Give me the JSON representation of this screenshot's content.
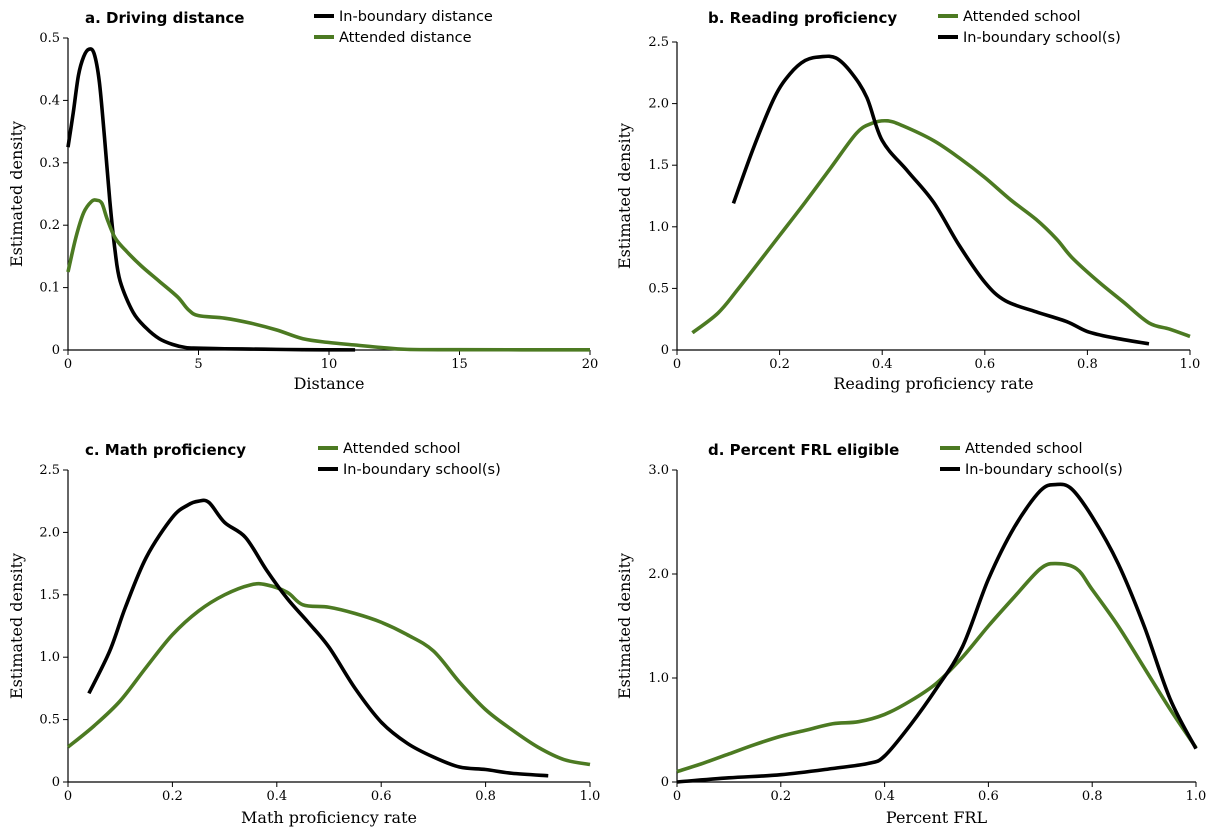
{
  "colors": {
    "green": "#4c7a22",
    "black": "#000000"
  },
  "chart_data": [
    {
      "type": "line",
      "title": "a. Driving distance",
      "xlabel": "Distance",
      "ylabel": "Estimated density",
      "xlim": [
        0,
        20
      ],
      "ylim": [
        0,
        0.5
      ],
      "xticks": [
        "0",
        "5",
        "10",
        "15",
        "20"
      ],
      "xtick_values": [
        0,
        5,
        10,
        15,
        20
      ],
      "yticks": [
        "0",
        "0.1",
        "0.2",
        "0.3",
        "0.4",
        "0.5"
      ],
      "ytick_values": [
        0,
        0.1,
        0.2,
        0.3,
        0.4,
        0.5
      ],
      "legend_position": "top-center",
      "series": [
        {
          "name": "In-boundary distance",
          "color": "#000000",
          "points": [
            [
              0,
              0.325
            ],
            [
              0.2,
              0.38
            ],
            [
              0.4,
              0.44
            ],
            [
              0.6,
              0.47
            ],
            [
              0.8,
              0.482
            ],
            [
              1.0,
              0.475
            ],
            [
              1.2,
              0.43
            ],
            [
              1.4,
              0.34
            ],
            [
              1.6,
              0.24
            ],
            [
              1.8,
              0.16
            ],
            [
              2.0,
              0.11
            ],
            [
              2.5,
              0.06
            ],
            [
              3.0,
              0.035
            ],
            [
              3.5,
              0.018
            ],
            [
              4.0,
              0.009
            ],
            [
              4.5,
              0.004
            ],
            [
              5,
              0.003
            ],
            [
              6,
              0.002
            ],
            [
              7,
              0.0015
            ],
            [
              8,
              0.001
            ],
            [
              9,
              0.0005
            ],
            [
              10,
              0.0003
            ],
            [
              11,
              0.0002
            ]
          ]
        },
        {
          "name": "Attended distance",
          "color": "#4c7a22",
          "points": [
            [
              0,
              0.125
            ],
            [
              0.3,
              0.18
            ],
            [
              0.6,
              0.22
            ],
            [
              0.9,
              0.238
            ],
            [
              1.1,
              0.24
            ],
            [
              1.3,
              0.235
            ],
            [
              1.5,
              0.21
            ],
            [
              1.8,
              0.18
            ],
            [
              2.2,
              0.16
            ],
            [
              2.8,
              0.135
            ],
            [
              3.5,
              0.11
            ],
            [
              4.2,
              0.085
            ],
            [
              4.6,
              0.065
            ],
            [
              5,
              0.055
            ],
            [
              6,
              0.051
            ],
            [
              7,
              0.043
            ],
            [
              8,
              0.032
            ],
            [
              9,
              0.018
            ],
            [
              10,
              0.012
            ],
            [
              11,
              0.008
            ],
            [
              12,
              0.004
            ],
            [
              13,
              0.001
            ],
            [
              15,
              0.0005
            ],
            [
              20,
              0.0003
            ]
          ]
        }
      ]
    },
    {
      "type": "line",
      "title": "b. Reading proficiency",
      "xlabel": "Reading proficiency rate",
      "ylabel": "Estimated density",
      "xlim": [
        0,
        1.0
      ],
      "ylim": [
        0,
        2.5
      ],
      "xticks": [
        "0",
        "0.2",
        "0.4",
        "0.6",
        "0.8",
        "1.0"
      ],
      "xtick_values": [
        0,
        0.2,
        0.4,
        0.6,
        0.8,
        1.0
      ],
      "yticks": [
        "0",
        "0.5",
        "1.0",
        "1.5",
        "2.0",
        "2.5"
      ],
      "ytick_values": [
        0,
        0.5,
        1.0,
        1.5,
        2.0,
        2.5
      ],
      "legend_position": "top-center",
      "series": [
        {
          "name": "Attended school",
          "color": "#4c7a22",
          "points": [
            [
              0.03,
              0.14
            ],
            [
              0.08,
              0.3
            ],
            [
              0.12,
              0.5
            ],
            [
              0.2,
              0.93
            ],
            [
              0.25,
              1.2
            ],
            [
              0.3,
              1.48
            ],
            [
              0.35,
              1.76
            ],
            [
              0.38,
              1.84
            ],
            [
              0.41,
              1.86
            ],
            [
              0.44,
              1.82
            ],
            [
              0.5,
              1.7
            ],
            [
              0.55,
              1.56
            ],
            [
              0.6,
              1.4
            ],
            [
              0.65,
              1.22
            ],
            [
              0.7,
              1.06
            ],
            [
              0.74,
              0.9
            ],
            [
              0.77,
              0.75
            ],
            [
              0.82,
              0.56
            ],
            [
              0.87,
              0.39
            ],
            [
              0.92,
              0.22
            ],
            [
              0.96,
              0.17
            ],
            [
              1.0,
              0.11
            ]
          ]
        },
        {
          "name": "In-boundary school(s)",
          "color": "#000000",
          "points": [
            [
              0.11,
              1.19
            ],
            [
              0.15,
              1.65
            ],
            [
              0.19,
              2.05
            ],
            [
              0.22,
              2.24
            ],
            [
              0.25,
              2.35
            ],
            [
              0.28,
              2.38
            ],
            [
              0.31,
              2.37
            ],
            [
              0.34,
              2.25
            ],
            [
              0.37,
              2.05
            ],
            [
              0.4,
              1.7
            ],
            [
              0.45,
              1.45
            ],
            [
              0.5,
              1.2
            ],
            [
              0.55,
              0.85
            ],
            [
              0.6,
              0.55
            ],
            [
              0.64,
              0.4
            ],
            [
              0.7,
              0.31
            ],
            [
              0.76,
              0.23
            ],
            [
              0.8,
              0.15
            ],
            [
              0.85,
              0.1
            ],
            [
              0.92,
              0.05
            ]
          ]
        }
      ]
    },
    {
      "type": "line",
      "title": "c. Math proficiency",
      "xlabel": "Math proficiency rate",
      "ylabel": "Estimated density",
      "xlim": [
        0,
        1.0
      ],
      "ylim": [
        0,
        2.5
      ],
      "xticks": [
        "0",
        "0.2",
        "0.4",
        "0.6",
        "0.8",
        "1.0"
      ],
      "xtick_values": [
        0,
        0.2,
        0.4,
        0.6,
        0.8,
        1.0
      ],
      "yticks": [
        "0",
        "0.5",
        "1.0",
        "1.5",
        "2.0",
        "2.5"
      ],
      "ytick_values": [
        0,
        0.5,
        1.0,
        1.5,
        2.0,
        2.5
      ],
      "legend_position": "top-center",
      "series": [
        {
          "name": "Attended school",
          "color": "#4c7a22",
          "points": [
            [
              0,
              0.28
            ],
            [
              0.05,
              0.45
            ],
            [
              0.1,
              0.65
            ],
            [
              0.15,
              0.92
            ],
            [
              0.2,
              1.18
            ],
            [
              0.25,
              1.37
            ],
            [
              0.3,
              1.5
            ],
            [
              0.35,
              1.58
            ],
            [
              0.38,
              1.58
            ],
            [
              0.42,
              1.52
            ],
            [
              0.45,
              1.42
            ],
            [
              0.5,
              1.4
            ],
            [
              0.55,
              1.35
            ],
            [
              0.6,
              1.28
            ],
            [
              0.65,
              1.18
            ],
            [
              0.7,
              1.05
            ],
            [
              0.75,
              0.8
            ],
            [
              0.8,
              0.58
            ],
            [
              0.85,
              0.42
            ],
            [
              0.9,
              0.28
            ],
            [
              0.95,
              0.18
            ],
            [
              1.0,
              0.14
            ]
          ]
        },
        {
          "name": "In-boundary school(s)",
          "color": "#000000",
          "points": [
            [
              0.04,
              0.71
            ],
            [
              0.08,
              1.05
            ],
            [
              0.11,
              1.4
            ],
            [
              0.15,
              1.8
            ],
            [
              0.2,
              2.12
            ],
            [
              0.23,
              2.22
            ],
            [
              0.25,
              2.25
            ],
            [
              0.27,
              2.24
            ],
            [
              0.3,
              2.08
            ],
            [
              0.34,
              1.96
            ],
            [
              0.38,
              1.7
            ],
            [
              0.42,
              1.47
            ],
            [
              0.46,
              1.28
            ],
            [
              0.5,
              1.08
            ],
            [
              0.55,
              0.75
            ],
            [
              0.6,
              0.48
            ],
            [
              0.65,
              0.31
            ],
            [
              0.7,
              0.2
            ],
            [
              0.75,
              0.12
            ],
            [
              0.8,
              0.1
            ],
            [
              0.85,
              0.07
            ],
            [
              0.92,
              0.05
            ]
          ]
        }
      ]
    },
    {
      "type": "line",
      "title": "d. Percent FRL eligible",
      "xlabel": "Percent FRL",
      "ylabel": "Estimated density",
      "xlim": [
        0,
        1.0
      ],
      "ylim": [
        0,
        3.0
      ],
      "xticks": [
        "0",
        "0.2",
        "0.4",
        "0.6",
        "0.8",
        "1.0"
      ],
      "xtick_values": [
        0,
        0.2,
        0.4,
        0.6,
        0.8,
        1.0
      ],
      "yticks": [
        "0",
        "1.0",
        "2.0",
        "3.0"
      ],
      "ytick_values": [
        0,
        1.0,
        2.0,
        3.0
      ],
      "legend_position": "top-center",
      "series": [
        {
          "name": "Attended school",
          "color": "#4c7a22",
          "points": [
            [
              0,
              0.1
            ],
            [
              0.05,
              0.18
            ],
            [
              0.1,
              0.27
            ],
            [
              0.15,
              0.36
            ],
            [
              0.2,
              0.44
            ],
            [
              0.25,
              0.5
            ],
            [
              0.3,
              0.56
            ],
            [
              0.35,
              0.58
            ],
            [
              0.4,
              0.65
            ],
            [
              0.45,
              0.78
            ],
            [
              0.5,
              0.95
            ],
            [
              0.55,
              1.2
            ],
            [
              0.6,
              1.5
            ],
            [
              0.65,
              1.78
            ],
            [
              0.7,
              2.05
            ],
            [
              0.73,
              2.1
            ],
            [
              0.77,
              2.05
            ],
            [
              0.8,
              1.85
            ],
            [
              0.85,
              1.5
            ],
            [
              0.9,
              1.1
            ],
            [
              0.95,
              0.7
            ],
            [
              1.0,
              0.33
            ]
          ]
        },
        {
          "name": "In-boundary school(s)",
          "color": "#000000",
          "points": [
            [
              0,
              0.0
            ],
            [
              0.1,
              0.04
            ],
            [
              0.2,
              0.07
            ],
            [
              0.3,
              0.13
            ],
            [
              0.37,
              0.18
            ],
            [
              0.4,
              0.25
            ],
            [
              0.45,
              0.55
            ],
            [
              0.5,
              0.9
            ],
            [
              0.55,
              1.3
            ],
            [
              0.6,
              1.95
            ],
            [
              0.65,
              2.45
            ],
            [
              0.7,
              2.8
            ],
            [
              0.73,
              2.86
            ],
            [
              0.76,
              2.82
            ],
            [
              0.8,
              2.55
            ],
            [
              0.85,
              2.1
            ],
            [
              0.9,
              1.5
            ],
            [
              0.95,
              0.8
            ],
            [
              1.0,
              0.32
            ]
          ]
        }
      ]
    }
  ]
}
